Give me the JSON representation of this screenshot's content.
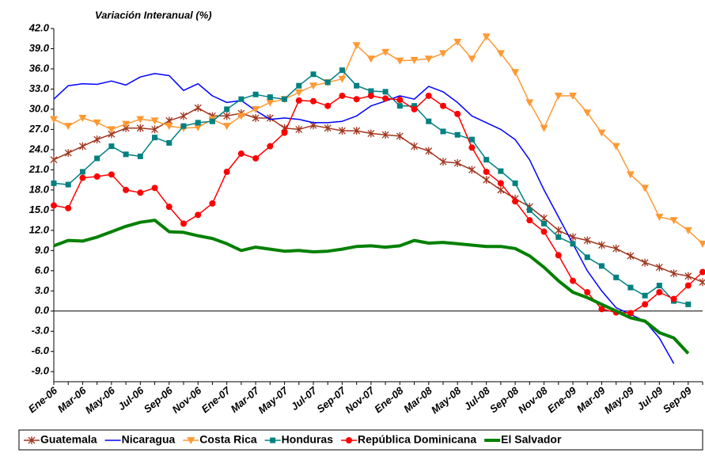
{
  "chart_data": {
    "type": "line",
    "title": "Variación Interanual (%)",
    "categories": [
      "Ene-06",
      null,
      "Mar-06",
      null,
      "May-06",
      null,
      "Jul-06",
      null,
      "Sep-06",
      null,
      "Nov-06",
      null,
      "Ene-07",
      null,
      "Mar-07",
      null,
      "May-07",
      null,
      "Jul-07",
      null,
      "Sep-07",
      null,
      "Nov-07",
      null,
      "Ene-08",
      null,
      "Mar-08",
      null,
      "May-08",
      null,
      "Jul-08",
      null,
      "Sep-08",
      null,
      "Nov-08",
      null,
      "Ene-09",
      null,
      "Mar-09",
      null,
      "May-09",
      null,
      "Jul-09",
      null,
      "Sep-09",
      null
    ],
    "ylim": [
      -10.5,
      42
    ],
    "yticks": [
      {
        "value": 42,
        "label": "42.0"
      },
      {
        "value": 39,
        "label": "39.0"
      },
      {
        "value": 36,
        "label": "36.0"
      },
      {
        "value": 33,
        "label": "33.0"
      },
      {
        "value": 30,
        "label": "30.0"
      },
      {
        "value": 27,
        "label": "27.0"
      },
      {
        "value": 24,
        "label": "24.0"
      },
      {
        "value": 21,
        "label": "21.0"
      },
      {
        "value": 18,
        "label": "18.0"
      },
      {
        "value": 15,
        "label": "15.0"
      },
      {
        "value": 12,
        "label": "12.0"
      },
      {
        "value": 9,
        "label": "9.0"
      },
      {
        "value": 6,
        "label": "6.0"
      },
      {
        "value": 3,
        "label": "3.0"
      },
      {
        "value": 0,
        "label": "0.0"
      },
      {
        "value": -3,
        "label": "-3.0"
      },
      {
        "value": -6,
        "label": "-6.0"
      },
      {
        "value": -9,
        "label": "-9.0"
      }
    ],
    "legend": "bottom",
    "series": [
      {
        "name": "Guatemala",
        "color": "#a0361e",
        "marker": "x",
        "line_width": 1.5,
        "values": [
          22.5,
          23.5,
          24.5,
          25.5,
          26.3,
          27.2,
          27.2,
          27.0,
          28.3,
          29.0,
          30.2,
          29.0,
          29.0,
          29.4,
          28.7,
          28.7,
          27.2,
          27.0,
          27.6,
          27.2,
          26.8,
          26.8,
          26.4,
          26.2,
          26.0,
          24.5,
          23.8,
          22.2,
          22.0,
          21.0,
          19.5,
          18.0,
          16.7,
          15.5,
          13.8,
          12.0,
          11.0,
          10.5,
          9.8,
          9.3,
          8.2,
          7.2,
          6.5,
          5.6,
          5.2,
          4.3
        ]
      },
      {
        "name": "Nicaragua",
        "color": "#0000ff",
        "marker": "none",
        "line_width": 1.5,
        "values": [
          31.5,
          33.5,
          33.8,
          33.7,
          34.2,
          33.6,
          34.8,
          35.3,
          35.0,
          32.8,
          33.8,
          32.0,
          31.0,
          31.3,
          29.8,
          28.5,
          28.7,
          28.5,
          28.0,
          28.0,
          28.2,
          29.0,
          30.5,
          31.2,
          32.0,
          31.5,
          33.4,
          32.6,
          31.0,
          29.0,
          28.0,
          27.0,
          25.5,
          22.5,
          18.0,
          14.0,
          10.0,
          6.0,
          3.0,
          0.5,
          -0.5,
          -1.5,
          -4.0,
          -7.8,
          null,
          null
        ]
      },
      {
        "name": "Costa Rica",
        "color": "#ff9933",
        "marker": "triangle",
        "line_width": 1.5,
        "values": [
          28.5,
          27.5,
          28.7,
          28.0,
          27.0,
          27.8,
          28.5,
          28.3,
          27.5,
          27.2,
          27.3,
          28.5,
          27.5,
          29.0,
          30.0,
          31.0,
          31.5,
          32.5,
          33.5,
          34.0,
          34.5,
          39.5,
          37.5,
          38.5,
          37.2,
          37.3,
          37.5,
          38.3,
          40.0,
          37.5,
          40.8,
          38.3,
          35.5,
          31.0,
          27.2,
          32.0,
          32.0,
          29.5,
          26.5,
          24.5,
          20.3,
          18.3,
          14.0,
          13.5,
          12.0,
          10.0
        ]
      },
      {
        "name": "Honduras",
        "color": "#008080",
        "marker": "square",
        "line_width": 1.5,
        "values": [
          19.0,
          18.8,
          20.7,
          22.7,
          24.5,
          23.3,
          23.0,
          25.8,
          25.0,
          27.5,
          28.0,
          28.2,
          30.0,
          31.5,
          32.2,
          31.8,
          31.5,
          33.5,
          35.2,
          34.0,
          35.8,
          33.5,
          32.7,
          32.6,
          30.5,
          30.5,
          28.2,
          26.7,
          26.2,
          25.5,
          22.5,
          20.8,
          19.0,
          15.0,
          13.0,
          11.0,
          10.0,
          8.0,
          6.7,
          5.0,
          3.5,
          2.3,
          3.8,
          1.5,
          1.0,
          null
        ]
      },
      {
        "name": "República Dominicana",
        "color": "#ff0000",
        "marker": "circle",
        "line_width": 1.5,
        "values": [
          15.7,
          15.3,
          19.8,
          20.0,
          20.3,
          18.0,
          17.6,
          18.3,
          15.5,
          13.0,
          14.3,
          16.0,
          20.7,
          23.4,
          22.7,
          24.5,
          26.5,
          31.3,
          31.2,
          30.5,
          32.0,
          31.5,
          32.0,
          31.6,
          31.4,
          30.0,
          32.0,
          30.5,
          29.3,
          24.3,
          20.7,
          19.0,
          16.3,
          13.5,
          11.8,
          8.3,
          4.5,
          2.8,
          0.3,
          -0.2,
          -0.3,
          1.0,
          2.8,
          1.8,
          3.8,
          5.8
        ]
      },
      {
        "name": "El Salvador",
        "color": "#008000",
        "marker": "none",
        "line_width": 4,
        "values": [
          9.7,
          10.5,
          10.4,
          11.0,
          11.8,
          12.6,
          13.2,
          13.5,
          11.8,
          11.7,
          11.2,
          10.8,
          10.0,
          9.0,
          9.5,
          9.2,
          8.9,
          9.0,
          8.8,
          8.9,
          9.2,
          9.6,
          9.7,
          9.5,
          9.7,
          10.5,
          10.1,
          10.2,
          10.0,
          9.8,
          9.6,
          9.6,
          9.3,
          8.2,
          6.5,
          4.5,
          2.8,
          2.0,
          1.0,
          0.0,
          -1.0,
          -1.5,
          -3.2,
          -4.0,
          -6.3,
          null
        ]
      }
    ]
  }
}
